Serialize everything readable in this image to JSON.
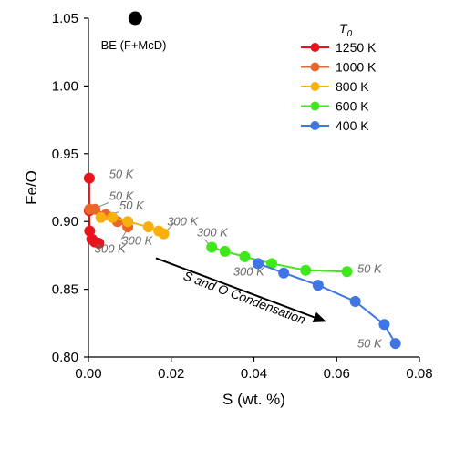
{
  "chart_data": {
    "type": "scatter",
    "xlabel": "S (wt. %)",
    "ylabel": "Fe/O",
    "xlim": [
      0,
      0.08
    ],
    "ylim": [
      0.8,
      1.05
    ],
    "xticks": [
      "0.00",
      "0.02",
      "0.04",
      "0.06",
      "0.08"
    ],
    "yticks": [
      "0.80",
      "0.85",
      "0.90",
      "0.95",
      "1.00",
      "1.05"
    ],
    "legend_title": "T",
    "legend_title_sub": "0",
    "legend_position": "top-right",
    "grid": false,
    "series": [
      {
        "name": "1250 K",
        "color": "#e8141c",
        "points": [
          {
            "x": 0.0002,
            "y": 0.932
          },
          {
            "x": 0.0002,
            "y": 0.908
          },
          {
            "x": 0.0003,
            "y": 0.893
          },
          {
            "x": 0.0008,
            "y": 0.887
          },
          {
            "x": 0.0015,
            "y": 0.885
          },
          {
            "x": 0.0025,
            "y": 0.884
          }
        ]
      },
      {
        "name": "1000 K",
        "color": "#ec6428",
        "points": [
          {
            "x": 0.0003,
            "y": 0.909
          },
          {
            "x": 0.0016,
            "y": 0.909
          },
          {
            "x": 0.0042,
            "y": 0.905
          },
          {
            "x": 0.007,
            "y": 0.9
          },
          {
            "x": 0.0095,
            "y": 0.896
          }
        ]
      },
      {
        "name": "800 K",
        "color": "#f8b00c",
        "points": [
          {
            "x": 0.003,
            "y": 0.903
          },
          {
            "x": 0.0058,
            "y": 0.903
          },
          {
            "x": 0.0095,
            "y": 0.9
          },
          {
            "x": 0.0145,
            "y": 0.896
          },
          {
            "x": 0.017,
            "y": 0.893
          },
          {
            "x": 0.0182,
            "y": 0.891
          }
        ]
      },
      {
        "name": "600 K",
        "color": "#3ee81a",
        "points": [
          {
            "x": 0.0298,
            "y": 0.881
          },
          {
            "x": 0.033,
            "y": 0.878
          },
          {
            "x": 0.0378,
            "y": 0.874
          },
          {
            "x": 0.0443,
            "y": 0.869
          },
          {
            "x": 0.0525,
            "y": 0.864
          },
          {
            "x": 0.0625,
            "y": 0.863
          }
        ]
      },
      {
        "name": "400 K",
        "color": "#3f76e4",
        "points": [
          {
            "x": 0.041,
            "y": 0.869
          },
          {
            "x": 0.0472,
            "y": 0.862
          },
          {
            "x": 0.0555,
            "y": 0.853
          },
          {
            "x": 0.0645,
            "y": 0.841
          },
          {
            "x": 0.0715,
            "y": 0.824
          },
          {
            "x": 0.0742,
            "y": 0.81
          }
        ]
      }
    ],
    "reference_point": {
      "label": "BE (F+McD)",
      "x": 0.0113,
      "y": 1.05,
      "color": "#000000"
    },
    "annotations": [
      {
        "text": "50 K",
        "x": 0.005,
        "y": 0.932,
        "style": "gray"
      },
      {
        "text": "50 K",
        "x": 0.005,
        "y": 0.916,
        "style": "gray",
        "leader": {
          "x1": 0.0049,
          "y1": 0.914,
          "x2": 0.001,
          "y2": 0.909
        }
      },
      {
        "text": "50 K",
        "x": 0.0075,
        "y": 0.909,
        "style": "gray",
        "leader": {
          "x1": 0.0074,
          "y1": 0.907,
          "x2": 0.0048,
          "y2": 0.905
        }
      },
      {
        "text": "300 K",
        "x": 0.019,
        "y": 0.897,
        "style": "gray",
        "leader": {
          "x1": 0.0208,
          "y1": 0.899,
          "x2": 0.0185,
          "y2": 0.892
        }
      },
      {
        "text": "300 K",
        "x": 0.008,
        "y": 0.883,
        "style": "gray",
        "leader": {
          "x1": 0.008,
          "y1": 0.887,
          "x2": 0.0095,
          "y2": 0.895
        }
      },
      {
        "text": "300 K",
        "x": 0.0015,
        "y": 0.877,
        "style": "gray",
        "leader": {
          "x1": 0.003,
          "y1": 0.881,
          "x2": 0.0012,
          "y2": 0.886
        }
      },
      {
        "text": "300 K",
        "x": 0.0262,
        "y": 0.889,
        "style": "gray",
        "leader": {
          "x1": 0.028,
          "y1": 0.887,
          "x2": 0.0298,
          "y2": 0.881
        }
      },
      {
        "text": "300 K",
        "x": 0.035,
        "y": 0.86,
        "style": "gray",
        "leader": {
          "x1": 0.039,
          "y1": 0.864,
          "x2": 0.041,
          "y2": 0.869
        }
      },
      {
        "text": "50 K",
        "x": 0.065,
        "y": 0.862,
        "style": "gray"
      },
      {
        "text": "50 K",
        "x": 0.065,
        "y": 0.807,
        "style": "gray"
      }
    ],
    "arrow": {
      "label": "S and O Condensation",
      "x1": 0.0163,
      "y1": 0.873,
      "x2": 0.0575,
      "y2": 0.826
    }
  }
}
